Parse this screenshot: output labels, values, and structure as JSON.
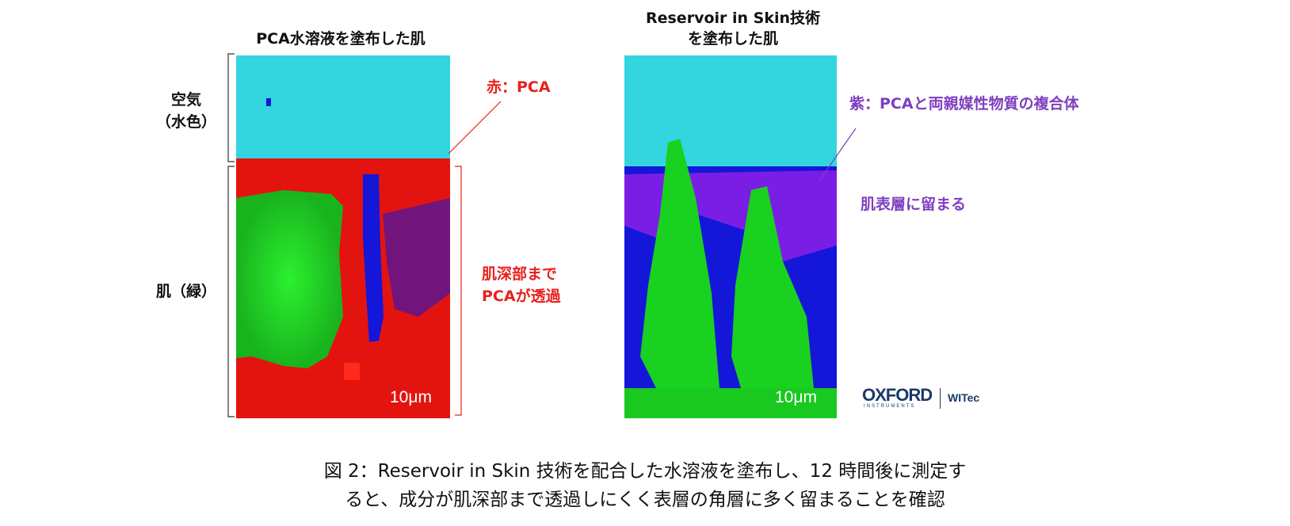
{
  "left_panel": {
    "title": "PCA水溶液を塗布した肌",
    "scale": "10μm"
  },
  "right_panel": {
    "title": "Reservoir in Skin技術\nを塗布した肌",
    "scale": "10μm"
  },
  "axis_labels": {
    "air": "空気\n（水色）",
    "skin": "肌（緑）"
  },
  "annotations": {
    "red_pca": "赤：PCA",
    "red_deep": "肌深部まで\nPCAが透過",
    "purple_complex": "紫：PCAと両親媒性物質の複合体",
    "purple_stay": "肌表層に留まる"
  },
  "colors": {
    "air": "#33d6de",
    "skin": "#19d11f",
    "pca": "#e3140f",
    "complex": "#7a1ee6",
    "blue": "#1416d8",
    "annotation_red": "#e8201c",
    "annotation_purple": "#7f3fbf",
    "logo": "#1b3a6b"
  },
  "logo": {
    "main": "OXFORD",
    "sub": "INSTRUMENTS",
    "partner": "WITec"
  },
  "caption": "図 2：Reservoir in Skin 技術を配合した水溶液を塗布し、12 時間後に測定す\nると、成分が肌深部まで透過しにくく表層の角層に多く留まることを確認"
}
